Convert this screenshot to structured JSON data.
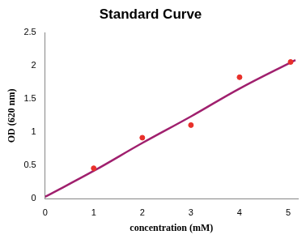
{
  "chart_data": {
    "type": "scatter",
    "title": "Standard Curve",
    "x_label": "concentration (mM)",
    "y_label": "OD (620 nm)",
    "series": [
      {
        "type": "scatter",
        "color": "#e8302a",
        "marker": "circle",
        "x": [
          1,
          2,
          3,
          4,
          5.05
        ],
        "values": [
          0.46,
          0.92,
          1.11,
          1.83,
          2.06
        ]
      },
      {
        "type": "line",
        "color": "#a0206e",
        "line_style": "solid",
        "x": [
          0,
          1,
          2,
          3,
          4,
          5.15
        ],
        "values": [
          0.03,
          0.42,
          0.84,
          1.24,
          1.66,
          2.09
        ]
      }
    ],
    "xlim": [
      0,
      5.2
    ],
    "xticks": [
      0,
      1,
      2,
      3,
      4,
      5
    ],
    "ylim": [
      0,
      2.5
    ],
    "yticks": [
      0,
      0.5,
      1,
      1.5,
      2,
      2.5
    ],
    "grid": false
  }
}
